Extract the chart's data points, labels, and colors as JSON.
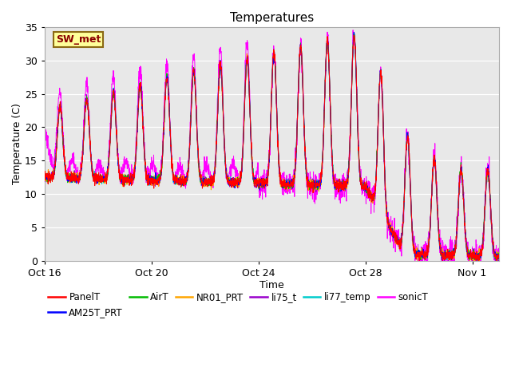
{
  "title": "Temperatures",
  "xlabel": "Time",
  "ylabel": "Temperature (C)",
  "ylim": [
    0,
    35
  ],
  "x_tick_labels": [
    "Oct 16",
    "Oct 20",
    "Oct 24",
    "Oct 28",
    "Nov 1"
  ],
  "x_tick_positions": [
    0,
    4,
    8,
    12,
    16
  ],
  "y_tick_positions": [
    0,
    5,
    10,
    15,
    20,
    25,
    30,
    35
  ],
  "background_color": "#ffffff",
  "plot_bg_color": "#e8e8e8",
  "series_colors": {
    "PanelT": "#ff0000",
    "AM25T_PRT": "#0000ff",
    "AirT": "#00bb00",
    "NR01_PRT": "#ffa500",
    "li75_t": "#9900cc",
    "li77_temp": "#00cccc",
    "sonicT": "#ff00ff"
  },
  "annotation_text": "SW_met",
  "annotation_color": "#8B0000",
  "annotation_bg": "#ffff99",
  "annotation_border": "#8B6914",
  "figsize": [
    6.4,
    4.8
  ],
  "dpi": 100
}
